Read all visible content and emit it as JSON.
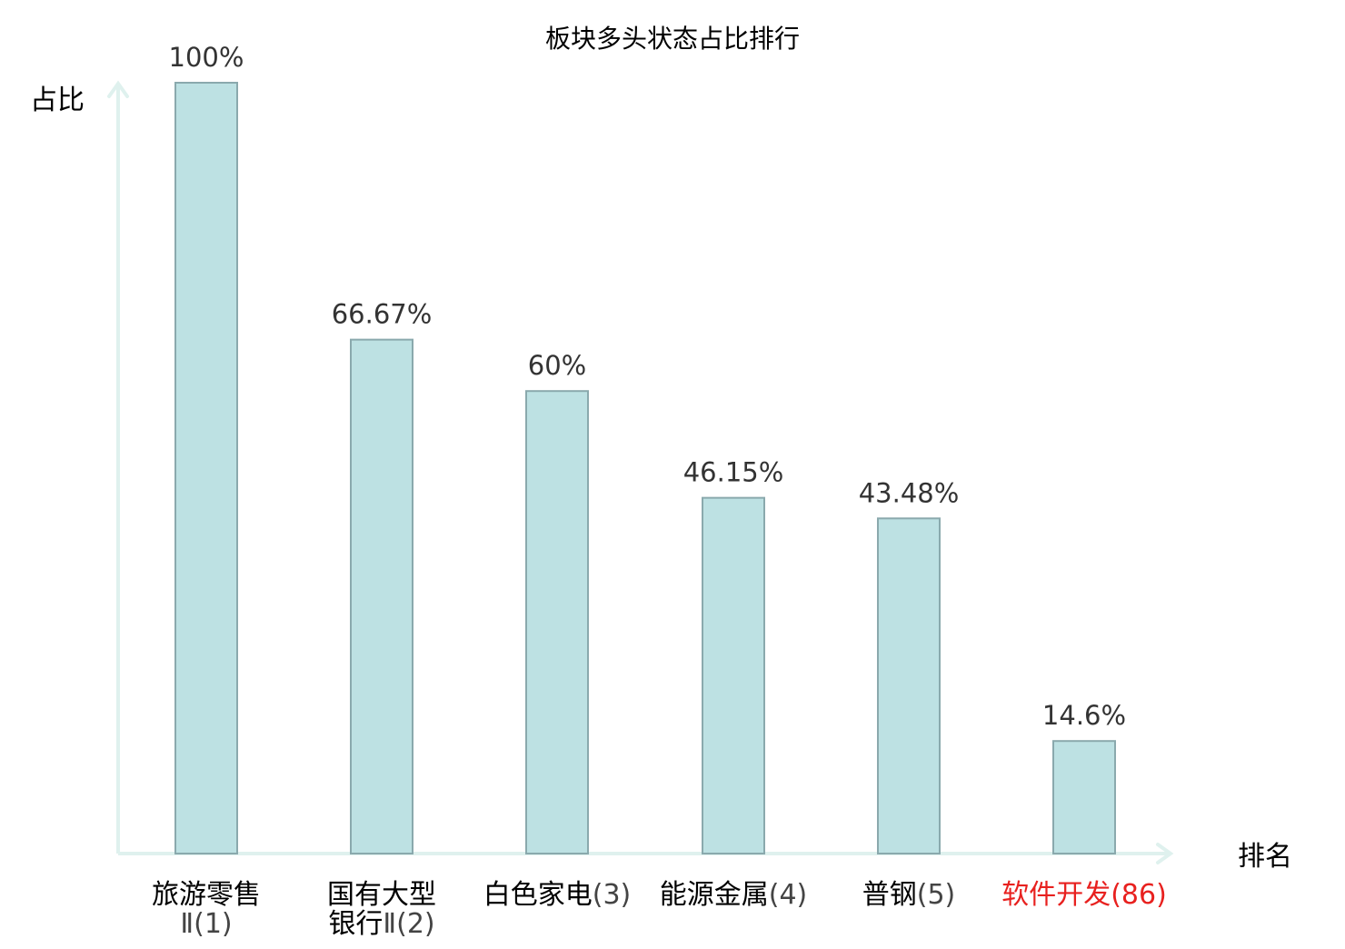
{
  "chart_data": {
    "type": "bar",
    "title": "板块多头状态占比排行",
    "ylabel": "占比",
    "xlabel": "排名",
    "ylim": [
      0,
      100
    ],
    "grid": false,
    "categories": [
      {
        "name_lines": [
          "旅游零售"
        ],
        "rank_line": "Ⅱ(1)",
        "inline": false,
        "highlight": false
      },
      {
        "name_lines": [
          "国有大型"
        ],
        "rank_line": "银行Ⅱ(2)",
        "inline": false,
        "highlight": false
      },
      {
        "name_lines": [
          "白色家电"
        ],
        "rank_line": "(3)",
        "inline": true,
        "highlight": false
      },
      {
        "name_lines": [
          "能源金属"
        ],
        "rank_line": "(4)",
        "inline": true,
        "highlight": false
      },
      {
        "name_lines": [
          "普钢"
        ],
        "rank_line": "(5)",
        "inline": true,
        "highlight": false
      },
      {
        "name_lines": [
          "软件开发"
        ],
        "rank_line": "(86)",
        "inline": true,
        "highlight": true
      }
    ],
    "values": [
      100,
      66.67,
      60,
      46.15,
      43.48,
      14.6
    ],
    "value_labels": [
      "100%",
      "66.67%",
      "60%",
      "46.15%",
      "43.48%",
      "14.6%"
    ],
    "colors": {
      "bar_fill": "#bde1e3",
      "bar_stroke": "#8aa9ad",
      "axis": "#dff1ee",
      "text": "#000000",
      "value_text": "#333333",
      "rank_text": "#444444",
      "highlight": "#e8211f"
    }
  }
}
